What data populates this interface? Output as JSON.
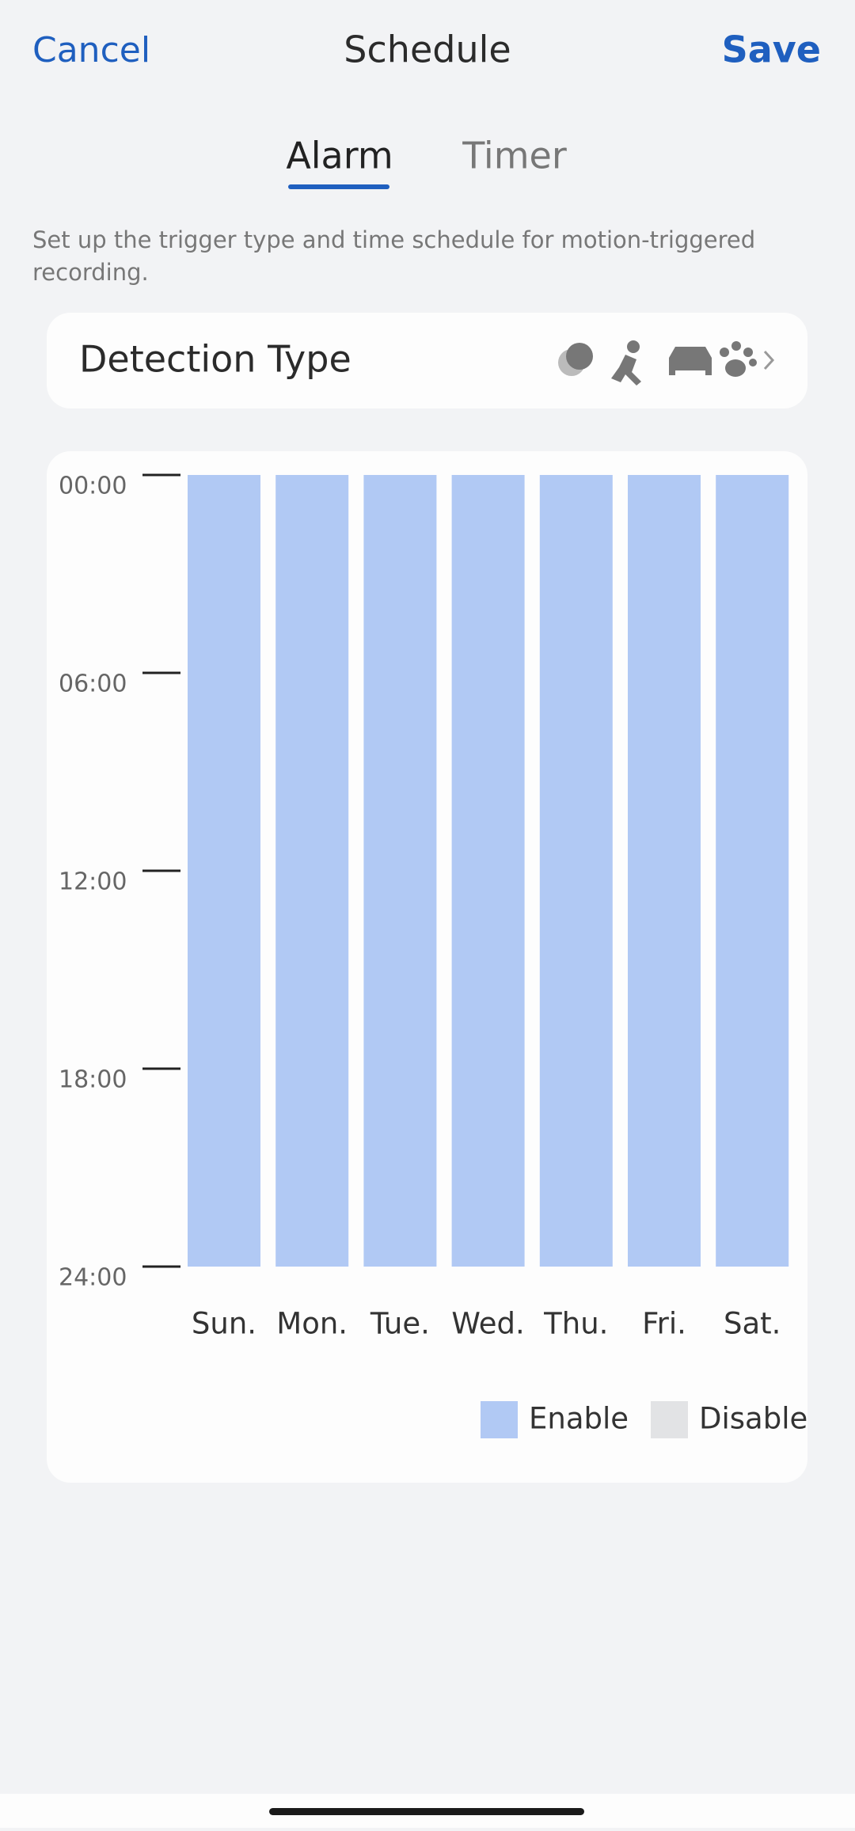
{
  "header": {
    "cancel": "Cancel",
    "title": "Schedule",
    "save": "Save"
  },
  "tabs": {
    "alarm": "Alarm",
    "timer": "Timer"
  },
  "description": {
    "line1": "Set up the trigger type and time schedule for motion-triggered",
    "line2": "recording."
  },
  "detection": {
    "label": "Detection Type"
  },
  "chart_data": {
    "type": "stacked-bar",
    "categories": [
      "Sun.",
      "Mon.",
      "Tue.",
      "Wed.",
      "Thu.",
      "Fri.",
      "Sat."
    ],
    "series": [
      {
        "name": "Enable",
        "color": "#b1c9f4",
        "values": [
          24,
          24,
          24,
          24,
          24,
          24,
          24
        ]
      },
      {
        "name": "Disable",
        "color": "#e2e3e5",
        "values": [
          0,
          0,
          0,
          0,
          0,
          0,
          0
        ]
      }
    ],
    "ylim": [
      0,
      24
    ],
    "y_inverted": true,
    "yticks": [
      {
        "value": 0,
        "label": "00:00"
      },
      {
        "value": 6,
        "label": "06:00"
      },
      {
        "value": 12,
        "label": "12:00"
      },
      {
        "value": 18,
        "label": "18:00"
      },
      {
        "value": 24,
        "label": "24:00"
      }
    ]
  }
}
